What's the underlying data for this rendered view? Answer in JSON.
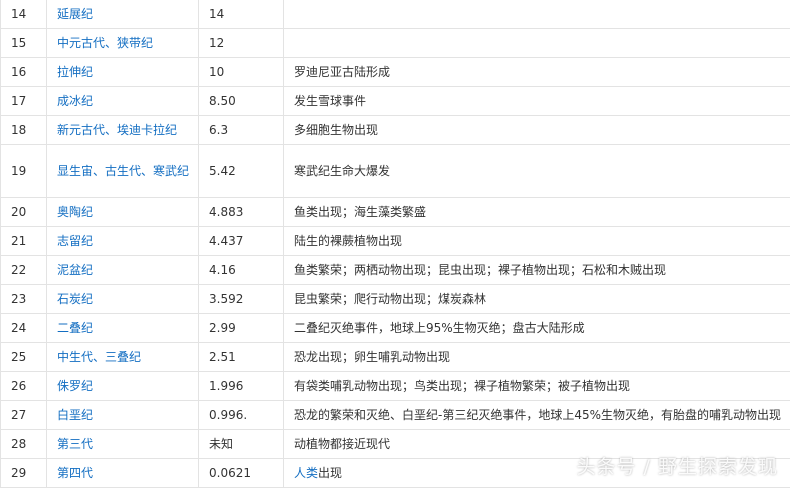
{
  "rows": [
    {
      "no": "14",
      "name": "延展纪",
      "value": "14",
      "desc": ""
    },
    {
      "no": "15",
      "name": "中元古代、狭带纪",
      "value": "12",
      "desc": ""
    },
    {
      "no": "16",
      "name": "拉伸纪",
      "value": "10",
      "desc": "罗迪尼亚古陆形成"
    },
    {
      "no": "17",
      "name": "成冰纪",
      "value": "8.50",
      "desc": "发生雪球事件"
    },
    {
      "no": "18",
      "name": "新元古代、埃迪卡拉纪",
      "value": "6.3",
      "desc": "多细胞生物出现"
    },
    {
      "no": "19",
      "name": "显生宙、古生代、寒武纪",
      "value": "5.42",
      "desc": "寒武纪生命大爆发"
    },
    {
      "no": "20",
      "name": "奥陶纪",
      "value": "4.883",
      "desc": "鱼类出现；海生藻类繁盛"
    },
    {
      "no": "21",
      "name": "志留纪",
      "value": "4.437",
      "desc": "陆生的裸蕨植物出现"
    },
    {
      "no": "22",
      "name": "泥盆纪",
      "value": "4.16",
      "desc": "鱼类繁荣；两栖动物出现；昆虫出现；裸子植物出现；石松和木贼出现"
    },
    {
      "no": "23",
      "name": "石炭纪",
      "value": "3.592",
      "desc": "昆虫繁荣；爬行动物出现；煤炭森林"
    },
    {
      "no": "24",
      "name": "二叠纪",
      "value": "2.99",
      "desc": "二叠纪灭绝事件，地球上95%生物灭绝；盘古大陆形成"
    },
    {
      "no": "25",
      "name": "中生代、三叠纪",
      "value": "2.51",
      "desc": "恐龙出现；卵生哺乳动物出现"
    },
    {
      "no": "26",
      "name": "侏罗纪",
      "value": "1.996",
      "desc": "有袋类哺乳动物出现；鸟类出现；裸子植物繁荣；被子植物出现"
    },
    {
      "no": "27",
      "name": "白垩纪",
      "value": "0.996.",
      "desc": "恐龙的繁荣和灭绝、白垩纪-第三纪灭绝事件，地球上45%生物灭绝，有胎盘的哺乳动物出现"
    },
    {
      "no": "28",
      "name": "第三代",
      "value": "未知",
      "desc": "动植物都接近现代"
    },
    {
      "no": "29",
      "name": "第四代",
      "value": "0.0621",
      "desc_link": "人类",
      "desc_rest": "出现"
    }
  ],
  "watermark": "头条号 / 野生探索发现",
  "colors": {
    "link": "#136ec2",
    "text": "#333333",
    "border": "#e3e3e3"
  }
}
